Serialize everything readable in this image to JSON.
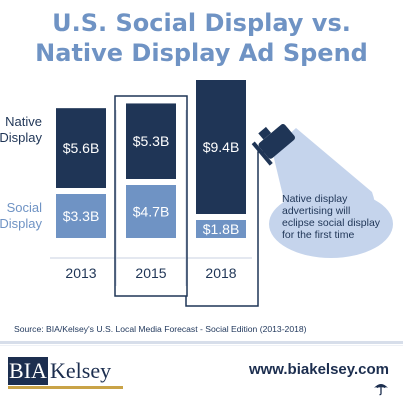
{
  "title": {
    "line1": "U.S. Social Display vs.",
    "line2": "Native Display Ad Spend"
  },
  "legend": {
    "native": [
      "Native",
      "Display"
    ],
    "social": [
      "Social",
      "Display"
    ]
  },
  "annotation": [
    "Native display",
    "advertising will",
    "eclipse social display",
    "for the first time"
  ],
  "source": "Source: BIA/Kelsey's U.S. Local Media Forecast - Social Edition (2013-2018)",
  "footer": {
    "logo_left": "BIA",
    "logo_right": "Kelsey",
    "url": "www.biakelsey.com"
  },
  "colors": {
    "native": "#1f3556",
    "social": "#6f93c4",
    "title": "#6f93c4",
    "spotlight": "#c5d4ec"
  },
  "chart_data": {
    "type": "bar",
    "stacked": true,
    "title": "U.S. Social Display vs. Native Display Ad Spend",
    "categories": [
      "2013",
      "2015",
      "2018"
    ],
    "series": [
      {
        "name": "Social Display",
        "values": [
          3.3,
          4.7,
          1.8
        ],
        "labels": [
          "$3.3B",
          "$4.7B",
          "$1.8B"
        ]
      },
      {
        "name": "Native Display",
        "values": [
          5.6,
          5.3,
          9.4
        ],
        "labels": [
          "$5.6B",
          "$5.3B",
          "$9.4B"
        ]
      }
    ],
    "highlight": "2015",
    "unit": "Billions (USD)"
  }
}
